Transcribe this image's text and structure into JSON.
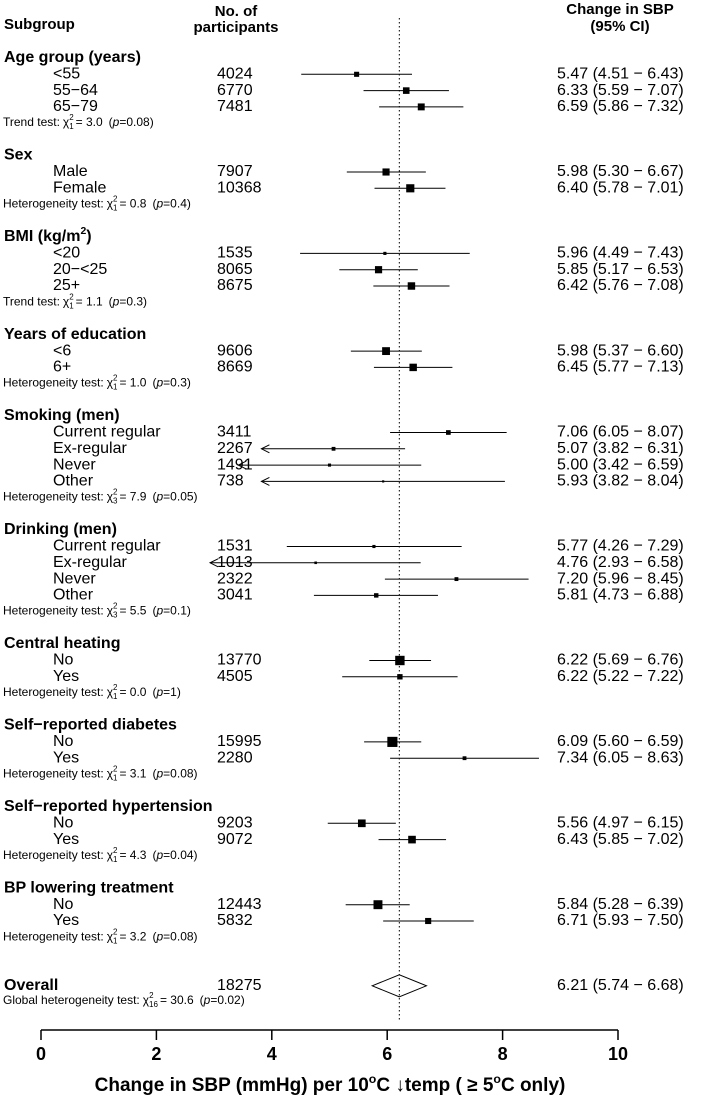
{
  "chart_data": {
    "type": "forest",
    "headers": {
      "subgroup": "Subgroup",
      "n": [
        "No. of",
        "participants"
      ],
      "effect": [
        "Change in SBP",
        "(95% CI)"
      ]
    },
    "xlim": [
      0,
      10
    ],
    "xticks": [
      0,
      2,
      4,
      6,
      8,
      10
    ],
    "xlabel": [
      {
        "text": "Change in SBP (mmHg) per 10"
      },
      {
        "text": "o",
        "sup": true
      },
      {
        "text": "C  ↓temp ( ≥ 5"
      },
      {
        "text": "o",
        "sup": true
      },
      {
        "text": "C only)"
      }
    ],
    "reference_line": "dotted",
    "color": "#000000",
    "groups": [
      {
        "title": [
          {
            "text": "Age group (years)"
          }
        ],
        "rows": [
          {
            "label": "<55",
            "n": 4024,
            "estimate": 5.47,
            "lo": 4.51,
            "hi": 6.43,
            "value_label": "5.47 (4.51 − 6.43)"
          },
          {
            "label": "55−64",
            "n": 6770,
            "estimate": 6.33,
            "lo": 5.59,
            "hi": 7.07,
            "value_label": "6.33 (5.59 − 7.07)"
          },
          {
            "label": "65−79",
            "n": 7481,
            "estimate": 6.59,
            "lo": 5.86,
            "hi": 7.32,
            "value_label": "6.59 (5.86 − 7.32)"
          }
        ],
        "test": {
          "name": "Trend test:",
          "chi": "χ",
          "sup": "2",
          "df": "1",
          "stat": "= 3.0",
          "p": [
            "(",
            "p",
            "=0.08)"
          ]
        }
      },
      {
        "title": [
          {
            "text": "Sex"
          }
        ],
        "rows": [
          {
            "label": "Male",
            "n": 7907,
            "estimate": 5.98,
            "lo": 5.3,
            "hi": 6.67,
            "value_label": "5.98 (5.30 − 6.67)"
          },
          {
            "label": "Female",
            "n": 10368,
            "estimate": 6.4,
            "lo": 5.78,
            "hi": 7.01,
            "value_label": "6.40 (5.78 − 7.01)"
          }
        ],
        "test": {
          "name": "Heterogeneity test:",
          "chi": "χ",
          "sup": "2",
          "df": "1",
          "stat": "= 0.8",
          "p": [
            "(",
            "p",
            "=0.4)"
          ]
        }
      },
      {
        "title": [
          {
            "text": "BMI (kg/m"
          },
          {
            "text": "2",
            "sup": true
          },
          {
            "text": ")"
          }
        ],
        "rows": [
          {
            "label": "<20",
            "n": 1535,
            "estimate": 5.96,
            "lo": 4.49,
            "hi": 7.43,
            "value_label": "5.96 (4.49 − 7.43)"
          },
          {
            "label": "20−<25",
            "n": 8065,
            "estimate": 5.85,
            "lo": 5.17,
            "hi": 6.53,
            "value_label": "5.85 (5.17 − 6.53)"
          },
          {
            "label": "25+",
            "n": 8675,
            "estimate": 6.42,
            "lo": 5.76,
            "hi": 7.08,
            "value_label": "6.42 (5.76 − 7.08)"
          }
        ],
        "test": {
          "name": "Trend test:",
          "chi": "χ",
          "sup": "2",
          "df": "1",
          "stat": "= 1.1",
          "p": [
            "(",
            "p",
            "=0.3)"
          ]
        }
      },
      {
        "title": [
          {
            "text": "Years of education"
          }
        ],
        "rows": [
          {
            "label": "<6",
            "n": 9606,
            "estimate": 5.98,
            "lo": 5.37,
            "hi": 6.6,
            "value_label": "5.98 (5.37 − 6.60)"
          },
          {
            "label": "6+",
            "n": 8669,
            "estimate": 6.45,
            "lo": 5.77,
            "hi": 7.13,
            "value_label": "6.45 (5.77 − 7.13)"
          }
        ],
        "test": {
          "name": "Heterogeneity test:",
          "chi": "χ",
          "sup": "2",
          "df": "1",
          "stat": "= 1.0",
          "p": [
            "(",
            "p",
            "=0.3)"
          ]
        }
      },
      {
        "title": [
          {
            "text": "Smoking (men)"
          }
        ],
        "rows": [
          {
            "label": "Current regular",
            "n": 3411,
            "estimate": 7.06,
            "lo": 6.05,
            "hi": 8.07,
            "value_label": "7.06 (6.05 − 8.07)"
          },
          {
            "label": "Ex-regular",
            "n": 2267,
            "estimate": 5.07,
            "lo": 3.82,
            "hi": 6.31,
            "value_label": "5.07 (3.82 − 6.31)",
            "arrow": true
          },
          {
            "label": "Never",
            "n": 1491,
            "estimate": 5.0,
            "lo": 3.42,
            "hi": 6.59,
            "value_label": "5.00 (3.42 − 6.59)",
            "arrow": true
          },
          {
            "label": "Other",
            "n": 738,
            "estimate": 5.93,
            "lo": 3.82,
            "hi": 8.04,
            "value_label": "5.93 (3.82 − 8.04)",
            "arrow": true
          }
        ],
        "test": {
          "name": "Heterogeneity test:",
          "chi": "χ",
          "sup": "2",
          "df": "3",
          "stat": "= 7.9",
          "p": [
            "(",
            "p",
            "=0.05)"
          ]
        }
      },
      {
        "title": [
          {
            "text": "Drinking (men)"
          }
        ],
        "rows": [
          {
            "label": "Current regular",
            "n": 1531,
            "estimate": 5.77,
            "lo": 4.26,
            "hi": 7.29,
            "value_label": "5.77 (4.26 − 7.29)"
          },
          {
            "label": "Ex-regular",
            "n": 1013,
            "estimate": 4.76,
            "lo": 2.93,
            "hi": 6.58,
            "value_label": "4.76 (2.93 − 6.58)",
            "arrow": true
          },
          {
            "label": "Never",
            "n": 2322,
            "estimate": 7.2,
            "lo": 5.96,
            "hi": 8.45,
            "value_label": "7.20 (5.96 − 8.45)"
          },
          {
            "label": "Other",
            "n": 3041,
            "estimate": 5.81,
            "lo": 4.73,
            "hi": 6.88,
            "value_label": "5.81 (4.73 − 6.88)"
          }
        ],
        "test": {
          "name": "Heterogeneity test:",
          "chi": "χ",
          "sup": "2",
          "df": "3",
          "stat": "= 5.5",
          "p": [
            "(",
            "p",
            "=0.1)"
          ]
        }
      },
      {
        "title": [
          {
            "text": "Central heating"
          }
        ],
        "rows": [
          {
            "label": "No",
            "n": 13770,
            "estimate": 6.22,
            "lo": 5.69,
            "hi": 6.76,
            "value_label": "6.22 (5.69 − 6.76)"
          },
          {
            "label": "Yes",
            "n": 4505,
            "estimate": 6.22,
            "lo": 5.22,
            "hi": 7.22,
            "value_label": "6.22 (5.22 − 7.22)"
          }
        ],
        "test": {
          "name": "Heterogeneity test:",
          "chi": "χ",
          "sup": "2",
          "df": "1",
          "stat": "= 0.0",
          "p": [
            "(",
            "p",
            "=1)"
          ]
        }
      },
      {
        "title": [
          {
            "text": "Self−reported diabetes"
          }
        ],
        "rows": [
          {
            "label": "No",
            "n": 15995,
            "estimate": 6.09,
            "lo": 5.6,
            "hi": 6.59,
            "value_label": "6.09 (5.60 − 6.59)"
          },
          {
            "label": "Yes",
            "n": 2280,
            "estimate": 7.34,
            "lo": 6.05,
            "hi": 8.63,
            "value_label": "7.34 (6.05 − 8.63)"
          }
        ],
        "test": {
          "name": "Heterogeneity test:",
          "chi": "χ",
          "sup": "2",
          "df": "1",
          "stat": "= 3.1",
          "p": [
            "(",
            "p",
            "=0.08)"
          ]
        }
      },
      {
        "title": [
          {
            "text": "Self−reported hypertension"
          }
        ],
        "rows": [
          {
            "label": "No",
            "n": 9203,
            "estimate": 5.56,
            "lo": 4.97,
            "hi": 6.15,
            "value_label": "5.56 (4.97 − 6.15)"
          },
          {
            "label": "Yes",
            "n": 9072,
            "estimate": 6.43,
            "lo": 5.85,
            "hi": 7.02,
            "value_label": "6.43 (5.85 − 7.02)"
          }
        ],
        "test": {
          "name": "Heterogeneity test:",
          "chi": "χ",
          "sup": "2",
          "df": "1",
          "stat": "= 4.3",
          "p": [
            "(",
            "p",
            "=0.04)"
          ]
        }
      },
      {
        "title": [
          {
            "text": "BP lowering treatment"
          }
        ],
        "rows": [
          {
            "label": "No",
            "n": 12443,
            "estimate": 5.84,
            "lo": 5.28,
            "hi": 6.39,
            "value_label": "5.84 (5.28 − 6.39)"
          },
          {
            "label": "Yes",
            "n": 5832,
            "estimate": 6.71,
            "lo": 5.93,
            "hi": 7.5,
            "value_label": "6.71 (5.93 − 7.50)"
          }
        ],
        "test": {
          "name": "Heterogeneity test:",
          "chi": "χ",
          "sup": "2",
          "df": "1",
          "stat": "= 3.2",
          "p": [
            "(",
            "p",
            "=0.08)"
          ]
        }
      }
    ],
    "overall": {
      "label": "Overall",
      "n": 18275,
      "estimate": 6.21,
      "lo": 5.74,
      "hi": 6.68,
      "value_label": "6.21 (5.74 − 6.68)",
      "test": {
        "name": "Global heterogeneity test:",
        "chi": "χ",
        "sup": "2",
        "df": "16",
        "stat": "= 30.6",
        "p": [
          "(",
          "p",
          "=0.02)"
        ]
      }
    }
  }
}
